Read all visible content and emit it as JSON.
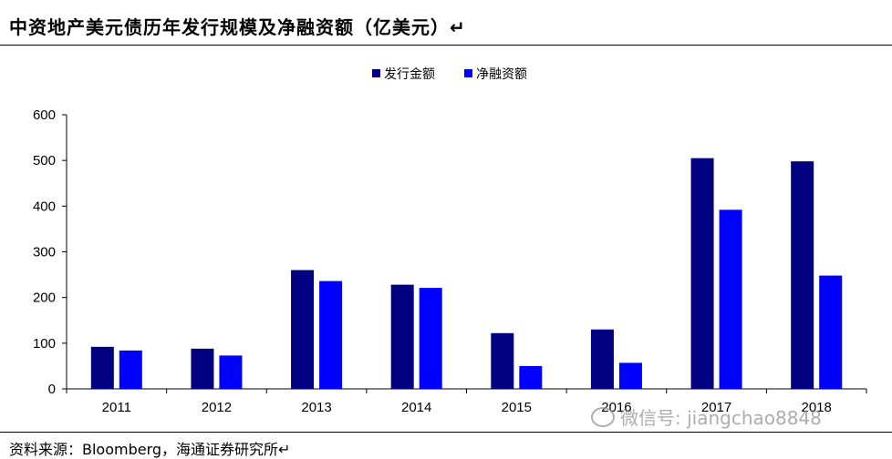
{
  "header": {
    "title": "中资地产美元债历年发行规模及净融资额（亿美元）↵"
  },
  "footer": {
    "source": "资料来源：Bloomberg，海通证券研究所↵"
  },
  "watermark": {
    "text": "微信号: jiangchao8848"
  },
  "colors": {
    "issuance": "#000080",
    "net_financing": "#0000ff"
  },
  "chart_data": {
    "type": "bar",
    "title": "中资地产美元债历年发行规模及净融资额（亿美元）",
    "xlabel": "",
    "ylabel": "",
    "categories": [
      "2011",
      "2012",
      "2013",
      "2014",
      "2015",
      "2016",
      "2017",
      "2018"
    ],
    "series": [
      {
        "name": "发行金额",
        "values": [
          92,
          88,
          260,
          228,
          122,
          130,
          505,
          498
        ]
      },
      {
        "name": "净融资额",
        "values": [
          84,
          73,
          236,
          221,
          50,
          57,
          392,
          248
        ]
      }
    ],
    "ylim": [
      0,
      600
    ],
    "yticks": [
      0,
      100,
      200,
      300,
      400,
      500,
      600
    ],
    "grid": false,
    "legend": "top-center"
  }
}
